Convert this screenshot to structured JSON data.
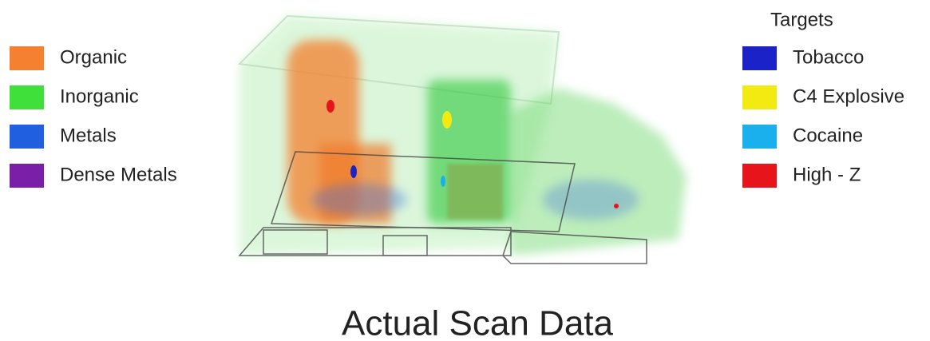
{
  "left_legend": {
    "items": [
      {
        "label": "Organic",
        "color": "#f5802f"
      },
      {
        "label": "Inorganic",
        "color": "#3fe03a"
      },
      {
        "label": "Metals",
        "color": "#1f5fe0"
      },
      {
        "label": "Dense Metals",
        "color": "#7a1fa8"
      }
    ]
  },
  "right_legend": {
    "title": "Targets",
    "items": [
      {
        "label": "Tobacco",
        "color": "#1a22c8"
      },
      {
        "label": "C4 Explosive",
        "color": "#f2ea10"
      },
      {
        "label": "Cocaine",
        "color": "#1ab0ee"
      },
      {
        "label": "High - Z",
        "color": "#e8141c"
      }
    ]
  },
  "caption": "Actual Scan Data"
}
